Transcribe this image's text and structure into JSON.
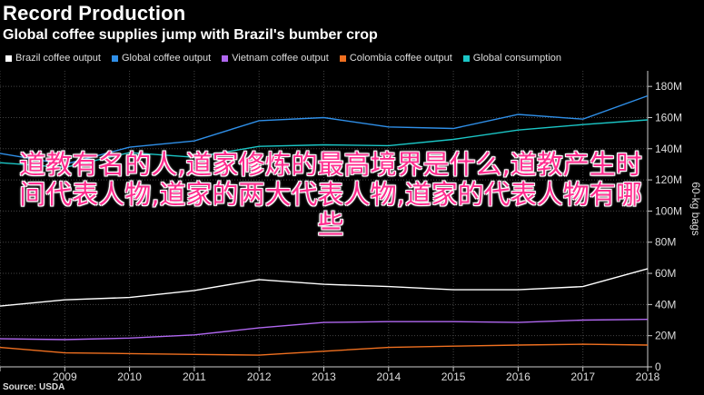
{
  "header": {
    "title": "Record Production",
    "subtitle": "Global coffee supplies jump with Brazil's bumber crop"
  },
  "source": "Source: USDA",
  "overlay_text": "道教有名的人,道家修炼的最高境界是什么,道教产生时间代表人物,道家的两大代表人物,道家的代表人物有哪些",
  "chart_data": {
    "type": "line",
    "x": [
      "2008",
      "2009",
      "2010",
      "2011",
      "2012",
      "2013",
      "2014",
      "2015",
      "2016",
      "2017",
      "2018"
    ],
    "xlim": [
      "2008",
      "2018"
    ],
    "ylabel": "60-kg bags",
    "ylim": [
      0,
      190000000
    ],
    "yticks": [
      0,
      20000000,
      40000000,
      60000000,
      80000000,
      100000000,
      120000000,
      140000000,
      160000000,
      180000000
    ],
    "ytick_labels": [
      "0",
      "20M",
      "40M",
      "60M",
      "80M",
      "100M",
      "120M",
      "140M",
      "160M",
      "180M"
    ],
    "grid": true,
    "legend_position": "top",
    "series": [
      {
        "name": "Brazil coffee output",
        "color": "#ffffff",
        "values": [
          39000000,
          43000000,
          44500000,
          49000000,
          56000000,
          53000000,
          51500000,
          49500000,
          49500000,
          51500000,
          63000000
        ]
      },
      {
        "name": "Global coffee output",
        "color": "#2f8fe8",
        "values": [
          137000000,
          130000000,
          141000000,
          145000000,
          158000000,
          160000000,
          154000000,
          153000000,
          162000000,
          159000000,
          174000000
        ]
      },
      {
        "name": "Vietnam coffee output",
        "color": "#b067f0",
        "values": [
          18000000,
          17500000,
          18500000,
          20500000,
          25000000,
          28500000,
          29000000,
          29000000,
          28500000,
          30000000,
          30500000
        ]
      },
      {
        "name": "Colombia coffee output",
        "color": "#f07020",
        "values": [
          12500000,
          9000000,
          8500000,
          8000000,
          7500000,
          10000000,
          12500000,
          13300000,
          14000000,
          14500000,
          14000000
        ]
      },
      {
        "name": "Global consumption",
        "color": "#1bc6c6",
        "values": [
          131000000,
          128000000,
          137500000,
          134500000,
          141500000,
          142500000,
          142000000,
          146000000,
          152000000,
          155500000,
          158500000
        ]
      }
    ]
  }
}
